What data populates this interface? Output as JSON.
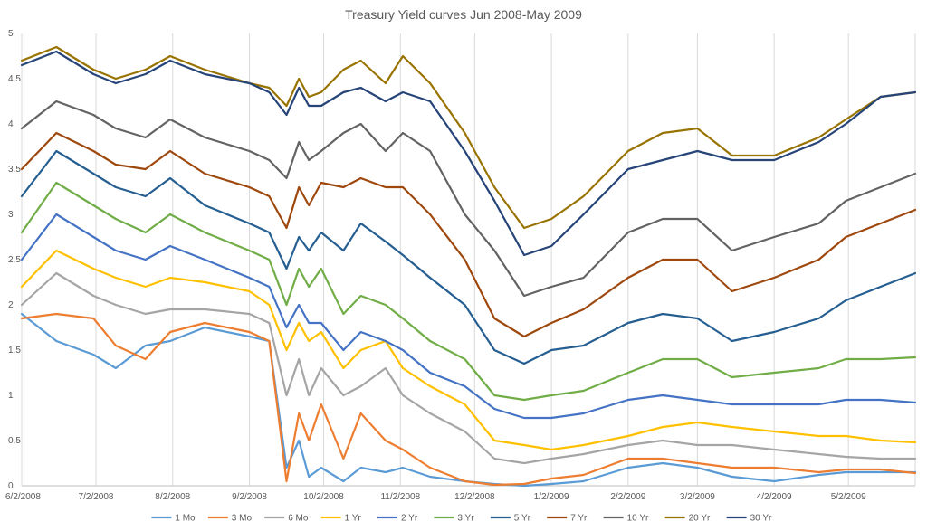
{
  "chart_data": {
    "type": "line",
    "title": "Treasury Yield curves Jun 2008-May 2009",
    "xlabel": "",
    "ylabel": "",
    "ylim": [
      0,
      5
    ],
    "y_ticks": [
      "0",
      "0.5",
      "1",
      "1.5",
      "2",
      "2.5",
      "3",
      "3.5",
      "4",
      "4.5",
      "5"
    ],
    "x_range": [
      "6/2/2008",
      "5/29/2009"
    ],
    "x_ticks": [
      "6/2/2008",
      "7/2/2008",
      "8/2/2008",
      "9/2/2008",
      "10/2/2008",
      "11/2/2008",
      "12/2/2008",
      "1/2/2009",
      "2/2/2009",
      "3/2/2009",
      "4/2/2009",
      "5/2/2009"
    ],
    "grid": "vertical",
    "legend_position": "bottom",
    "series": [
      {
        "name": "1 Mo",
        "color": "#5B9BD5",
        "x": [
          "6/2/2008",
          "6/16/2008",
          "7/1/2008",
          "7/10/2008",
          "7/22/2008",
          "8/1/2008",
          "8/15/2008",
          "9/2/2008",
          "9/10/2008",
          "9/17/2008",
          "9/22/2008",
          "9/26/2008",
          "10/1/2008",
          "10/10/2008",
          "10/17/2008",
          "10/27/2008",
          "11/3/2008",
          "11/14/2008",
          "11/28/2008",
          "12/10/2008",
          "12/22/2008",
          "1/2/2009",
          "1/15/2009",
          "2/2/2009",
          "2/16/2009",
          "3/2/2009",
          "3/16/2009",
          "4/2/2009",
          "4/20/2009",
          "5/1/2009",
          "5/15/2009",
          "5/29/2009"
        ],
        "values": [
          1.9,
          1.6,
          1.45,
          1.3,
          1.55,
          1.6,
          1.75,
          1.65,
          1.6,
          0.2,
          0.5,
          0.1,
          0.2,
          0.05,
          0.2,
          0.15,
          0.2,
          0.1,
          0.05,
          0.02,
          0.0,
          0.02,
          0.05,
          0.2,
          0.25,
          0.2,
          0.1,
          0.05,
          0.12,
          0.15,
          0.15,
          0.15
        ]
      },
      {
        "name": "3 Mo",
        "color": "#ED7D31",
        "x": [
          "6/2/2008",
          "6/16/2008",
          "7/1/2008",
          "7/10/2008",
          "7/22/2008",
          "8/1/2008",
          "8/15/2008",
          "9/2/2008",
          "9/10/2008",
          "9/17/2008",
          "9/22/2008",
          "9/26/2008",
          "10/1/2008",
          "10/10/2008",
          "10/17/2008",
          "10/27/2008",
          "11/3/2008",
          "11/14/2008",
          "11/28/2008",
          "12/10/2008",
          "12/22/2008",
          "1/2/2009",
          "1/15/2009",
          "2/2/2009",
          "2/16/2009",
          "3/2/2009",
          "3/16/2009",
          "4/2/2009",
          "4/20/2009",
          "5/1/2009",
          "5/15/2009",
          "5/29/2009"
        ],
        "values": [
          1.85,
          1.9,
          1.85,
          1.55,
          1.4,
          1.7,
          1.8,
          1.7,
          1.6,
          0.05,
          0.8,
          0.5,
          0.9,
          0.3,
          0.8,
          0.5,
          0.4,
          0.2,
          0.05,
          0.01,
          0.02,
          0.08,
          0.12,
          0.3,
          0.3,
          0.25,
          0.2,
          0.2,
          0.15,
          0.18,
          0.18,
          0.14
        ]
      },
      {
        "name": "6 Mo",
        "color": "#A5A5A5",
        "x": [
          "6/2/2008",
          "6/16/2008",
          "7/1/2008",
          "7/10/2008",
          "7/22/2008",
          "8/1/2008",
          "8/15/2008",
          "9/2/2008",
          "9/10/2008",
          "9/17/2008",
          "9/22/2008",
          "9/26/2008",
          "10/1/2008",
          "10/10/2008",
          "10/17/2008",
          "10/27/2008",
          "11/3/2008",
          "11/14/2008",
          "11/28/2008",
          "12/10/2008",
          "12/22/2008",
          "1/2/2009",
          "1/15/2009",
          "2/2/2009",
          "2/16/2009",
          "3/2/2009",
          "3/16/2009",
          "4/2/2009",
          "4/20/2009",
          "5/1/2009",
          "5/15/2009",
          "5/29/2009"
        ],
        "values": [
          2.0,
          2.35,
          2.1,
          2.0,
          1.9,
          1.95,
          1.95,
          1.9,
          1.8,
          1.0,
          1.4,
          1.0,
          1.3,
          1.0,
          1.1,
          1.3,
          1.0,
          0.8,
          0.6,
          0.3,
          0.25,
          0.3,
          0.35,
          0.45,
          0.5,
          0.45,
          0.45,
          0.4,
          0.35,
          0.32,
          0.3,
          0.3
        ]
      },
      {
        "name": "1 Yr",
        "color": "#FFC000",
        "x": [
          "6/2/2008",
          "6/16/2008",
          "7/1/2008",
          "7/10/2008",
          "7/22/2008",
          "8/1/2008",
          "8/15/2008",
          "9/2/2008",
          "9/10/2008",
          "9/17/2008",
          "9/22/2008",
          "9/26/2008",
          "10/1/2008",
          "10/10/2008",
          "10/17/2008",
          "10/27/2008",
          "11/3/2008",
          "11/14/2008",
          "11/28/2008",
          "12/10/2008",
          "12/22/2008",
          "1/2/2009",
          "1/15/2009",
          "2/2/2009",
          "2/16/2009",
          "3/2/2009",
          "3/16/2009",
          "4/2/2009",
          "4/20/2009",
          "5/1/2009",
          "5/15/2009",
          "5/29/2009"
        ],
        "values": [
          2.2,
          2.6,
          2.4,
          2.3,
          2.2,
          2.3,
          2.25,
          2.15,
          2.0,
          1.5,
          1.8,
          1.6,
          1.7,
          1.3,
          1.5,
          1.6,
          1.3,
          1.1,
          0.9,
          0.5,
          0.45,
          0.4,
          0.45,
          0.55,
          0.65,
          0.7,
          0.65,
          0.6,
          0.55,
          0.55,
          0.5,
          0.48
        ]
      },
      {
        "name": "2 Yr",
        "color": "#4472C4",
        "x": [
          "6/2/2008",
          "6/16/2008",
          "7/1/2008",
          "7/10/2008",
          "7/22/2008",
          "8/1/2008",
          "8/15/2008",
          "9/2/2008",
          "9/10/2008",
          "9/17/2008",
          "9/22/2008",
          "9/26/2008",
          "10/1/2008",
          "10/10/2008",
          "10/17/2008",
          "10/27/2008",
          "11/3/2008",
          "11/14/2008",
          "11/28/2008",
          "12/10/2008",
          "12/22/2008",
          "1/2/2009",
          "1/15/2009",
          "2/2/2009",
          "2/16/2009",
          "3/2/2009",
          "3/16/2009",
          "4/2/2009",
          "4/20/2009",
          "5/1/2009",
          "5/15/2009",
          "5/29/2009"
        ],
        "values": [
          2.5,
          3.0,
          2.75,
          2.6,
          2.5,
          2.65,
          2.5,
          2.3,
          2.2,
          1.75,
          2.0,
          1.8,
          1.8,
          1.5,
          1.7,
          1.6,
          1.5,
          1.25,
          1.1,
          0.85,
          0.75,
          0.75,
          0.8,
          0.95,
          1.0,
          0.95,
          0.9,
          0.9,
          0.9,
          0.95,
          0.95,
          0.92
        ]
      },
      {
        "name": "3 Yr",
        "color": "#70AD47",
        "x": [
          "6/2/2008",
          "6/16/2008",
          "7/1/2008",
          "7/10/2008",
          "7/22/2008",
          "8/1/2008",
          "8/15/2008",
          "9/2/2008",
          "9/10/2008",
          "9/17/2008",
          "9/22/2008",
          "9/26/2008",
          "10/1/2008",
          "10/10/2008",
          "10/17/2008",
          "10/27/2008",
          "11/3/2008",
          "11/14/2008",
          "11/28/2008",
          "12/10/2008",
          "12/22/2008",
          "1/2/2009",
          "1/15/2009",
          "2/2/2009",
          "2/16/2009",
          "3/2/2009",
          "3/16/2009",
          "4/2/2009",
          "4/20/2009",
          "5/1/2009",
          "5/15/2009",
          "5/29/2009"
        ],
        "values": [
          2.8,
          3.35,
          3.1,
          2.95,
          2.8,
          3.0,
          2.8,
          2.6,
          2.5,
          2.0,
          2.4,
          2.2,
          2.4,
          1.9,
          2.1,
          2.0,
          1.85,
          1.6,
          1.4,
          1.0,
          0.95,
          1.0,
          1.05,
          1.25,
          1.4,
          1.4,
          1.2,
          1.25,
          1.3,
          1.4,
          1.4,
          1.42
        ]
      },
      {
        "name": "5 Yr",
        "color": "#255E91",
        "x": [
          "6/2/2008",
          "6/16/2008",
          "7/1/2008",
          "7/10/2008",
          "7/22/2008",
          "8/1/2008",
          "8/15/2008",
          "9/2/2008",
          "9/10/2008",
          "9/17/2008",
          "9/22/2008",
          "9/26/2008",
          "10/1/2008",
          "10/10/2008",
          "10/17/2008",
          "10/27/2008",
          "11/3/2008",
          "11/14/2008",
          "11/28/2008",
          "12/10/2008",
          "12/22/2008",
          "1/2/2009",
          "1/15/2009",
          "2/2/2009",
          "2/16/2009",
          "3/2/2009",
          "3/16/2009",
          "4/2/2009",
          "4/20/2009",
          "5/1/2009",
          "5/15/2009",
          "5/29/2009"
        ],
        "values": [
          3.2,
          3.7,
          3.45,
          3.3,
          3.2,
          3.4,
          3.1,
          2.9,
          2.8,
          2.4,
          2.75,
          2.6,
          2.8,
          2.6,
          2.9,
          2.7,
          2.55,
          2.3,
          2.0,
          1.5,
          1.35,
          1.5,
          1.55,
          1.8,
          1.9,
          1.85,
          1.6,
          1.7,
          1.85,
          2.05,
          2.2,
          2.35
        ]
      },
      {
        "name": "7 Yr",
        "color": "#9E480E",
        "x": [
          "6/2/2008",
          "6/16/2008",
          "7/1/2008",
          "7/10/2008",
          "7/22/2008",
          "8/1/2008",
          "8/15/2008",
          "9/2/2008",
          "9/10/2008",
          "9/17/2008",
          "9/22/2008",
          "9/26/2008",
          "10/1/2008",
          "10/10/2008",
          "10/17/2008",
          "10/27/2008",
          "11/3/2008",
          "11/14/2008",
          "11/28/2008",
          "12/10/2008",
          "12/22/2008",
          "1/2/2009",
          "1/15/2009",
          "2/2/2009",
          "2/16/2009",
          "3/2/2009",
          "3/16/2009",
          "4/2/2009",
          "4/20/2009",
          "5/1/2009",
          "5/15/2009",
          "5/29/2009"
        ],
        "values": [
          3.5,
          3.9,
          3.7,
          3.55,
          3.5,
          3.7,
          3.45,
          3.3,
          3.2,
          2.85,
          3.3,
          3.1,
          3.35,
          3.3,
          3.4,
          3.3,
          3.3,
          3.0,
          2.5,
          1.85,
          1.65,
          1.8,
          1.95,
          2.3,
          2.5,
          2.5,
          2.15,
          2.3,
          2.5,
          2.75,
          2.9,
          3.05
        ]
      },
      {
        "name": "10 Yr",
        "color": "#636363",
        "x": [
          "6/2/2008",
          "6/16/2008",
          "7/1/2008",
          "7/10/2008",
          "7/22/2008",
          "8/1/2008",
          "8/15/2008",
          "9/2/2008",
          "9/10/2008",
          "9/17/2008",
          "9/22/2008",
          "9/26/2008",
          "10/1/2008",
          "10/10/2008",
          "10/17/2008",
          "10/27/2008",
          "11/3/2008",
          "11/14/2008",
          "11/28/2008",
          "12/10/2008",
          "12/22/2008",
          "1/2/2009",
          "1/15/2009",
          "2/2/2009",
          "2/16/2009",
          "3/2/2009",
          "3/16/2009",
          "4/2/2009",
          "4/20/2009",
          "5/1/2009",
          "5/15/2009",
          "5/29/2009"
        ],
        "values": [
          3.95,
          4.25,
          4.1,
          3.95,
          3.85,
          4.05,
          3.85,
          3.7,
          3.6,
          3.4,
          3.8,
          3.6,
          3.7,
          3.9,
          4.0,
          3.7,
          3.9,
          3.7,
          3.0,
          2.6,
          2.1,
          2.2,
          2.3,
          2.8,
          2.95,
          2.95,
          2.6,
          2.75,
          2.9,
          3.15,
          3.3,
          3.45
        ]
      },
      {
        "name": "20 Yr",
        "color": "#997300",
        "x": [
          "6/2/2008",
          "6/16/2008",
          "7/1/2008",
          "7/10/2008",
          "7/22/2008",
          "8/1/2008",
          "8/15/2008",
          "9/2/2008",
          "9/10/2008",
          "9/17/2008",
          "9/22/2008",
          "9/26/2008",
          "10/1/2008",
          "10/10/2008",
          "10/17/2008",
          "10/27/2008",
          "11/3/2008",
          "11/14/2008",
          "11/28/2008",
          "12/10/2008",
          "12/22/2008",
          "1/2/2009",
          "1/15/2009",
          "2/2/2009",
          "2/16/2009",
          "3/2/2009",
          "3/16/2009",
          "4/2/2009",
          "4/20/2009",
          "5/1/2009",
          "5/15/2009",
          "5/29/2009"
        ],
        "values": [
          4.7,
          4.85,
          4.6,
          4.5,
          4.6,
          4.75,
          4.6,
          4.45,
          4.4,
          4.2,
          4.5,
          4.3,
          4.35,
          4.6,
          4.7,
          4.45,
          4.75,
          4.45,
          3.9,
          3.3,
          2.85,
          2.95,
          3.2,
          3.7,
          3.9,
          3.95,
          3.65,
          3.65,
          3.85,
          4.05,
          4.3,
          4.35
        ]
      },
      {
        "name": "30 Yr",
        "color": "#264478",
        "x": [
          "6/2/2008",
          "6/16/2008",
          "7/1/2008",
          "7/10/2008",
          "7/22/2008",
          "8/1/2008",
          "8/15/2008",
          "9/2/2008",
          "9/10/2008",
          "9/17/2008",
          "9/22/2008",
          "9/26/2008",
          "10/1/2008",
          "10/10/2008",
          "10/17/2008",
          "10/27/2008",
          "11/3/2008",
          "11/14/2008",
          "11/28/2008",
          "12/10/2008",
          "12/22/2008",
          "1/2/2009",
          "1/15/2009",
          "2/2/2009",
          "2/16/2009",
          "3/2/2009",
          "3/16/2009",
          "4/2/2009",
          "4/20/2009",
          "5/1/2009",
          "5/15/2009",
          "5/29/2009"
        ],
        "values": [
          4.65,
          4.8,
          4.55,
          4.45,
          4.55,
          4.7,
          4.55,
          4.45,
          4.35,
          4.1,
          4.4,
          4.2,
          4.2,
          4.35,
          4.4,
          4.25,
          4.35,
          4.25,
          3.7,
          3.15,
          2.55,
          2.65,
          3.0,
          3.5,
          3.6,
          3.7,
          3.6,
          3.6,
          3.8,
          4.0,
          4.3,
          4.35
        ]
      }
    ]
  }
}
